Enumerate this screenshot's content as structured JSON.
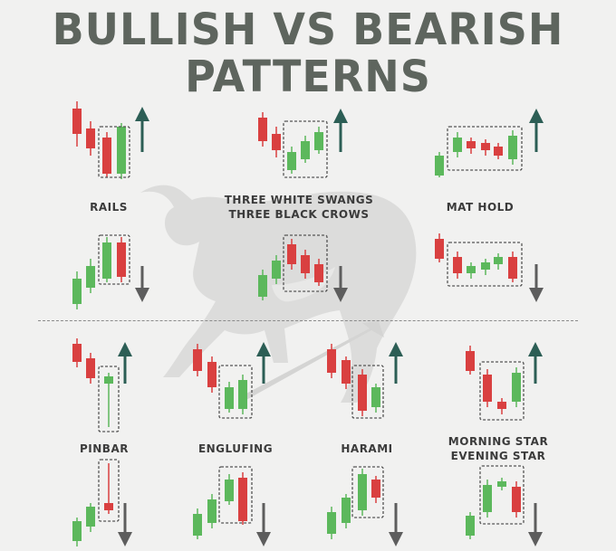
{
  "title": {
    "line1": "BULLISH VS BEARISH",
    "line2": "PATTERNS"
  },
  "colors": {
    "bull": "#5cb85c",
    "bear": "#d94040",
    "arrow_up": "#2c5e55",
    "arrow_down": "#5d5d5d",
    "title": "#5e655e"
  },
  "labels": {
    "rails": "RAILS",
    "three_line1": "THREE WHITE SWANGS",
    "three_line2": "THREE BLACK CROWS",
    "mat_hold": "MAT HOLD",
    "pinbar": "PINBAR",
    "engulfing": "ENGLUFING",
    "harami": "HARAMI",
    "morning_line1": "MORNING STAR",
    "morning_line2": "EVENING STAR"
  }
}
